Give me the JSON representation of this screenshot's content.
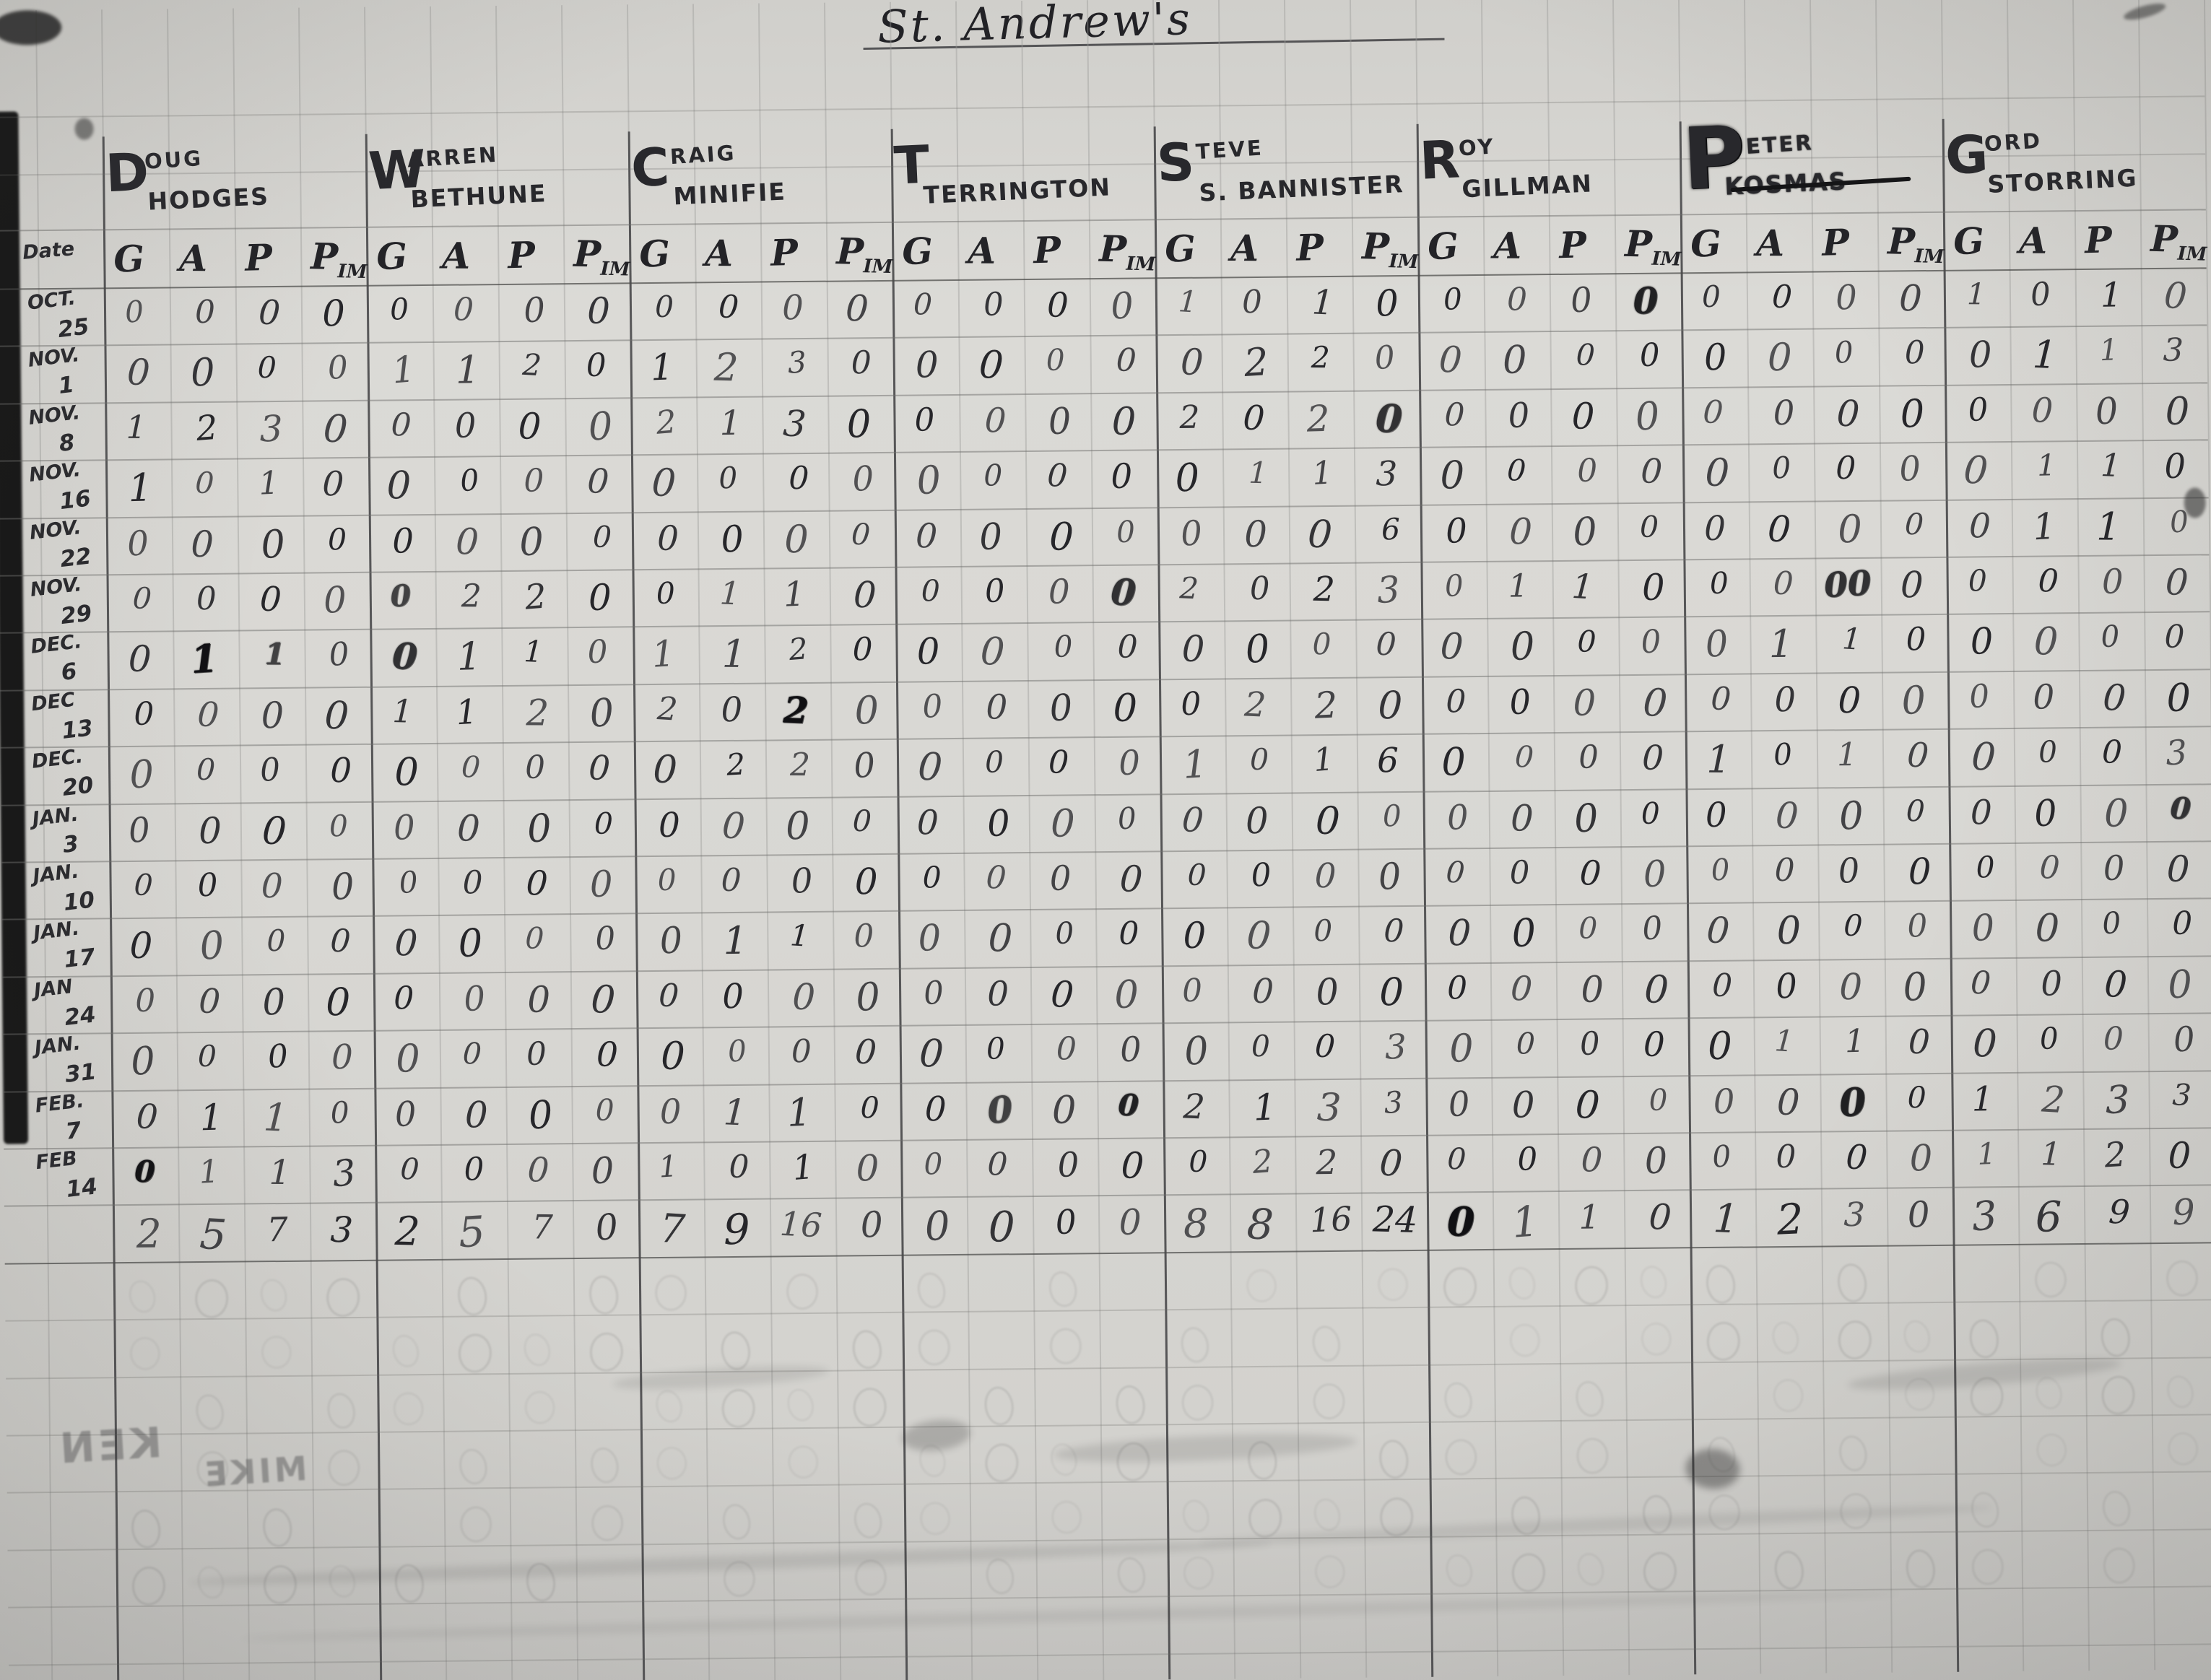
{
  "title": "St. Andrew's",
  "sheet": {
    "date_label": "Date",
    "stat_columns": [
      "G",
      "A",
      "P",
      "Pim"
    ]
  },
  "players": [
    {
      "name": "Doug Hodges",
      "initial": "D",
      "first_rest": "OUG",
      "last": "HODGES",
      "struck": false
    },
    {
      "name": "Warren Bethune",
      "initial": "W",
      "first_rest": "ARREN",
      "last": "BETHUNE",
      "struck": false
    },
    {
      "name": "Craig Minifie",
      "initial": "C",
      "first_rest": "RAIG",
      "last": "MINIFIE",
      "struck": false
    },
    {
      "name": "T. Terrington",
      "initial": "T",
      "first_rest": "",
      "last": "TERRINGTON",
      "struck": false
    },
    {
      "name": "Steve Bannister",
      "initial": "S",
      "first_rest": "TEVE",
      "last": "S. BANNISTER",
      "struck": false
    },
    {
      "name": "Roy Gillman",
      "initial": "R",
      "first_rest": "OY",
      "last": "GILLMAN",
      "struck": false
    },
    {
      "name": "Peter Kosmas",
      "initial": "P",
      "first_rest": "ETER",
      "last": "KOSMAS",
      "struck": true
    },
    {
      "name": "Gord Storring",
      "initial": "G",
      "first_rest": "ORD",
      "last": "STORRING",
      "struck": false
    }
  ],
  "rows": [
    {
      "month": "OCT.",
      "day": "25",
      "cells": [
        [
          "0",
          "0",
          "0",
          "0"
        ],
        [
          "0",
          "0",
          "0",
          "0"
        ],
        [
          "0",
          "0",
          "0",
          "0"
        ],
        [
          "0",
          "0",
          "0",
          "0"
        ],
        [
          "1",
          "0",
          "1",
          "0"
        ],
        [
          "0",
          "0",
          "0",
          {
            "v": "0",
            "b": 1
          }
        ],
        [
          "0",
          "0",
          "0",
          "0"
        ],
        [
          "1",
          "0",
          "1",
          "0"
        ]
      ]
    },
    {
      "month": "NOV.",
      "day": "1",
      "cells": [
        [
          "0",
          "0",
          "0",
          "0"
        ],
        [
          "1",
          "1",
          "2",
          "0"
        ],
        [
          "1",
          "2",
          "3",
          "0"
        ],
        [
          "0",
          "0",
          "0",
          "0"
        ],
        [
          "0",
          "2",
          "2",
          "0"
        ],
        [
          "0",
          "0",
          "0",
          "0"
        ],
        [
          "0",
          "0",
          "0",
          "0"
        ],
        [
          "0",
          "1",
          "1",
          "3"
        ]
      ]
    },
    {
      "month": "NOV.",
      "day": "8",
      "cells": [
        [
          "1",
          "2",
          "3",
          "0"
        ],
        [
          "0",
          "0",
          "0",
          "0"
        ],
        [
          "2",
          "1",
          "3",
          "0"
        ],
        [
          "0",
          "0",
          "0",
          "0"
        ],
        [
          "2",
          "0",
          "2",
          {
            "v": "0",
            "b": 1
          }
        ],
        [
          "0",
          "0",
          "0",
          "0"
        ],
        [
          "0",
          "0",
          "0",
          "0"
        ],
        [
          "0",
          "0",
          "0",
          "0"
        ]
      ]
    },
    {
      "month": "NOV.",
      "day": "16",
      "cells": [
        [
          "1",
          "0",
          "1",
          "0"
        ],
        [
          "0",
          "0",
          "0",
          "0"
        ],
        [
          "0",
          "0",
          "0",
          "0"
        ],
        [
          "0",
          "0",
          "0",
          "0"
        ],
        [
          "0",
          "1",
          "1",
          "3"
        ],
        [
          "0",
          "0",
          "0",
          "0"
        ],
        [
          "0",
          "0",
          "0",
          "0"
        ],
        [
          "0",
          "1",
          "1",
          "0"
        ]
      ]
    },
    {
      "month": "NOV.",
      "day": "22",
      "cells": [
        [
          "0",
          "0",
          "0",
          "0"
        ],
        [
          "0",
          "0",
          "0",
          "0"
        ],
        [
          "0",
          "0",
          "0",
          "0"
        ],
        [
          "0",
          "0",
          "0",
          "0"
        ],
        [
          "0",
          "0",
          "0",
          "6"
        ],
        [
          "0",
          "0",
          "0",
          "0"
        ],
        [
          "0",
          "0",
          "0",
          "0"
        ],
        [
          "0",
          "1",
          "1",
          "0"
        ]
      ]
    },
    {
      "month": "NOV.",
      "day": "29",
      "cells": [
        [
          "0",
          "0",
          "0",
          "0"
        ],
        [
          {
            "v": "0",
            "b": 1
          },
          "2",
          "2",
          "0"
        ],
        [
          "0",
          "1",
          "1",
          "0"
        ],
        [
          "0",
          "0",
          "0",
          {
            "v": "0",
            "b": 1
          }
        ],
        [
          "2",
          "0",
          "2",
          "3"
        ],
        [
          "0",
          "1",
          "1",
          "0"
        ],
        [
          "0",
          "0",
          {
            "v": "00",
            "b": 1
          },
          "0"
        ],
        [
          "0",
          "0",
          "0",
          "0"
        ]
      ]
    },
    {
      "month": "DEC.",
      "day": "6",
      "cells": [
        [
          "0",
          {
            "v": "1",
            "b": 1
          },
          {
            "v": "1",
            "b": 1
          },
          "0"
        ],
        [
          {
            "v": "0",
            "b": 1
          },
          "1",
          "1",
          "0"
        ],
        [
          "1",
          "1",
          "2",
          "0"
        ],
        [
          "0",
          "0",
          "0",
          "0"
        ],
        [
          "0",
          "0",
          "0",
          "0"
        ],
        [
          "0",
          "0",
          "0",
          "0"
        ],
        [
          "0",
          "1",
          "1",
          "0"
        ],
        [
          "0",
          "0",
          "0",
          "0"
        ]
      ]
    },
    {
      "month": "DEC",
      "day": "13",
      "cells": [
        [
          "0",
          "0",
          "0",
          "0"
        ],
        [
          "1",
          "1",
          "2",
          "0"
        ],
        [
          "2",
          "0",
          {
            "v": "2",
            "b": 1
          },
          "0"
        ],
        [
          "0",
          "0",
          "0",
          "0"
        ],
        [
          "0",
          "2",
          "2",
          "0"
        ],
        [
          "0",
          "0",
          "0",
          "0"
        ],
        [
          "0",
          "0",
          "0",
          "0"
        ],
        [
          "0",
          "0",
          "0",
          "0"
        ]
      ]
    },
    {
      "month": "DEC.",
      "day": "20",
      "cells": [
        [
          "0",
          "0",
          "0",
          "0"
        ],
        [
          "0",
          "0",
          "0",
          "0"
        ],
        [
          "0",
          "2",
          "2",
          "0"
        ],
        [
          "0",
          "0",
          "0",
          "0"
        ],
        [
          "1",
          "0",
          "1",
          "6"
        ],
        [
          "0",
          "0",
          "0",
          "0"
        ],
        [
          "1",
          "0",
          "1",
          "0"
        ],
        [
          "0",
          "0",
          "0",
          "3"
        ]
      ]
    },
    {
      "month": "JAN.",
      "day": "3",
      "cells": [
        [
          "0",
          "0",
          "0",
          "0"
        ],
        [
          "0",
          "0",
          "0",
          "0"
        ],
        [
          "0",
          "0",
          "0",
          "0"
        ],
        [
          "0",
          "0",
          "0",
          "0"
        ],
        [
          "0",
          "0",
          "0",
          "0"
        ],
        [
          "0",
          "0",
          "0",
          "0"
        ],
        [
          "0",
          "0",
          "0",
          "0"
        ],
        [
          "0",
          "0",
          "0",
          {
            "v": "0",
            "b": 1
          }
        ]
      ]
    },
    {
      "month": "JAN.",
      "day": "10",
      "cells": [
        [
          "0",
          "0",
          "0",
          "0"
        ],
        [
          "0",
          "0",
          "0",
          "0"
        ],
        [
          "0",
          "0",
          "0",
          "0"
        ],
        [
          "0",
          "0",
          "0",
          "0"
        ],
        [
          "0",
          "0",
          "0",
          "0"
        ],
        [
          "0",
          "0",
          "0",
          "0"
        ],
        [
          "0",
          "0",
          "0",
          "0"
        ],
        [
          "0",
          "0",
          "0",
          "0"
        ]
      ]
    },
    {
      "month": "JAN.",
      "day": "17",
      "cells": [
        [
          "0",
          "0",
          "0",
          "0"
        ],
        [
          "0",
          "0",
          "0",
          "0"
        ],
        [
          "0",
          "1",
          "1",
          "0"
        ],
        [
          "0",
          "0",
          "0",
          "0"
        ],
        [
          "0",
          "0",
          "0",
          "0"
        ],
        [
          "0",
          "0",
          "0",
          "0"
        ],
        [
          "0",
          "0",
          "0",
          "0"
        ],
        [
          "0",
          "0",
          "0",
          "0"
        ]
      ]
    },
    {
      "month": "JAN",
      "day": "24",
      "cells": [
        [
          "0",
          "0",
          "0",
          "0"
        ],
        [
          "0",
          "0",
          "0",
          "0"
        ],
        [
          "0",
          "0",
          "0",
          "0"
        ],
        [
          "0",
          "0",
          "0",
          "0"
        ],
        [
          "0",
          "0",
          "0",
          "0"
        ],
        [
          "0",
          "0",
          "0",
          "0"
        ],
        [
          "0",
          "0",
          "0",
          "0"
        ],
        [
          "0",
          "0",
          "0",
          "0"
        ]
      ]
    },
    {
      "month": "JAN.",
      "day": "31",
      "cells": [
        [
          "0",
          "0",
          "0",
          "0"
        ],
        [
          "0",
          "0",
          "0",
          "0"
        ],
        [
          "0",
          "0",
          "0",
          "0"
        ],
        [
          "0",
          "0",
          "0",
          "0"
        ],
        [
          "0",
          "0",
          "0",
          "3"
        ],
        [
          "0",
          "0",
          "0",
          "0"
        ],
        [
          "0",
          "1",
          "1",
          "0"
        ],
        [
          "0",
          "0",
          "0",
          "0"
        ]
      ]
    },
    {
      "month": "FEB.",
      "day": "7",
      "cells": [
        [
          "0",
          "1",
          "1",
          "0"
        ],
        [
          "0",
          "0",
          "0",
          "0"
        ],
        [
          "0",
          "1",
          "1",
          "0"
        ],
        [
          "0",
          {
            "v": "0",
            "b": 1
          },
          "0",
          {
            "v": "0",
            "b": 1
          }
        ],
        [
          "2",
          "1",
          "3",
          "3"
        ],
        [
          "0",
          "0",
          "0",
          "0"
        ],
        [
          "0",
          "0",
          {
            "v": "0",
            "b": 1
          },
          "0"
        ],
        [
          "1",
          "2",
          "3",
          "3"
        ]
      ]
    },
    {
      "month": "FEB",
      "day": "14",
      "cells": [
        [
          {
            "v": "0",
            "b": 1
          },
          "1",
          "1",
          "3"
        ],
        [
          "0",
          "0",
          "0",
          "0"
        ],
        [
          "1",
          "0",
          "1",
          "0"
        ],
        [
          "0",
          "0",
          "0",
          "0"
        ],
        [
          "0",
          "2",
          "2",
          "0"
        ],
        [
          "0",
          "0",
          "0",
          "0"
        ],
        [
          "0",
          "0",
          "0",
          "0"
        ],
        [
          "1",
          "1",
          "2",
          "0"
        ]
      ]
    }
  ],
  "totals": {
    "cells": [
      [
        "2",
        "5",
        "7",
        "3"
      ],
      [
        "2",
        "5",
        "7",
        "0"
      ],
      [
        "7",
        "9",
        "16",
        "0"
      ],
      [
        "0",
        "0",
        "0",
        "0"
      ],
      [
        "8",
        "8",
        "16",
        "24"
      ],
      [
        {
          "v": "0",
          "b": 1
        },
        "1",
        "1",
        "0"
      ],
      [
        "1",
        "2",
        "3",
        "0"
      ],
      [
        "3",
        "6",
        "9",
        "9"
      ]
    ]
  },
  "bleedthrough": {
    "words": [
      "KEN",
      "MIKE"
    ]
  }
}
